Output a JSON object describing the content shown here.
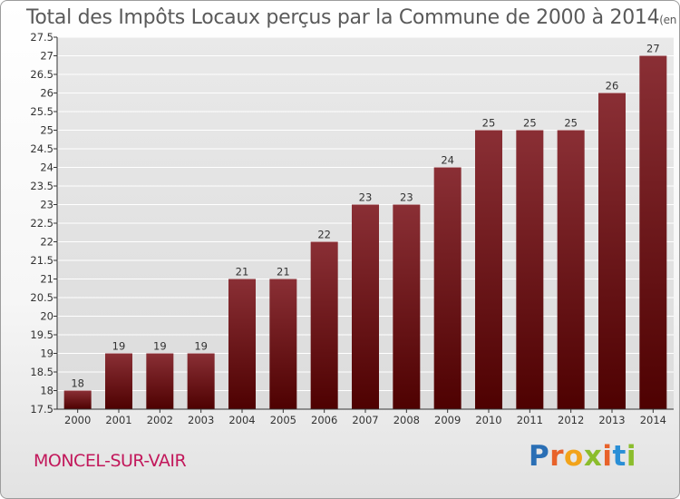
{
  "title": "Total des Impôts Locaux perçus par la Commune de 2000 à 2014",
  "title_unit": "(en milliers d'€)",
  "commune": "MONCEL-SUR-VAIR",
  "logo": {
    "text": "Proxiti",
    "letter_colors": [
      "#2a6fb5",
      "#e8622a",
      "#f2a31a",
      "#8bbd2c",
      "#e8622a",
      "#2a8fd6",
      "#8bbd2c"
    ]
  },
  "colors": {
    "bar_top": "#8a2f35",
    "bar_bottom": "#4e0101",
    "grid": "#ffffff",
    "axis": "#333333",
    "text": "#333333"
  },
  "chart_data": {
    "type": "bar",
    "categories": [
      "2000",
      "2001",
      "2002",
      "2003",
      "2004",
      "2005",
      "2006",
      "2007",
      "2008",
      "2009",
      "2010",
      "2011",
      "2012",
      "2013",
      "2014"
    ],
    "values": [
      18,
      19,
      19,
      19,
      21,
      21,
      22,
      23,
      23,
      24,
      25,
      25,
      25,
      26,
      27
    ],
    "data_labels": [
      "18",
      "19",
      "19",
      "19",
      "21",
      "21",
      "22",
      "23",
      "23",
      "24",
      "25",
      "25",
      "25",
      "26",
      "27"
    ],
    "title": "Total des Impôts Locaux perçus par la Commune de 2000 à 2014",
    "xlabel": "",
    "ylabel": "",
    "ylim": [
      17.5,
      27.5
    ],
    "yticks": [
      17.5,
      18,
      18.5,
      19,
      19.5,
      20,
      20.5,
      21,
      21.5,
      22,
      22.5,
      23,
      23.5,
      24,
      24.5,
      25,
      25.5,
      26,
      26.5,
      27,
      27.5
    ],
    "grid": true,
    "legend": "none"
  }
}
